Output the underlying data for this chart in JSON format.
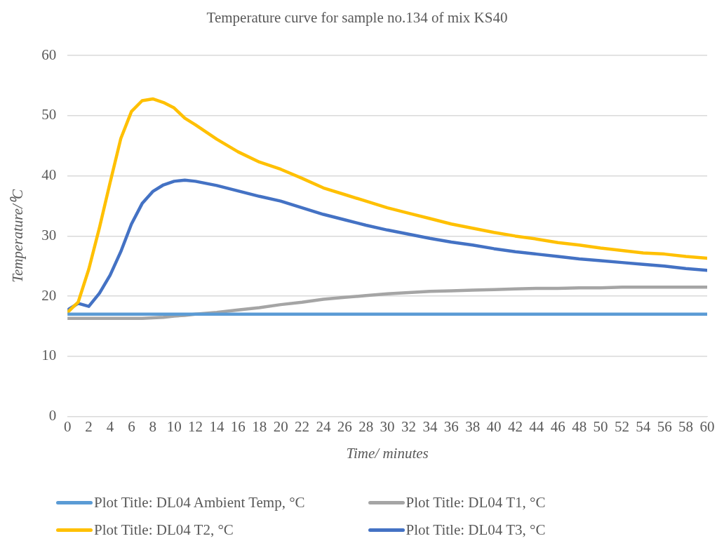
{
  "chart_data": {
    "type": "line",
    "title": "Temperature curve for sample no.134 of mix KS40",
    "xlabel": "Time/ minutes",
    "ylabel": "Temperature/⁰C",
    "x": [
      0,
      1,
      2,
      3,
      4,
      5,
      6,
      7,
      8,
      9,
      10,
      11,
      12,
      14,
      16,
      18,
      20,
      22,
      24,
      26,
      28,
      30,
      32,
      34,
      36,
      38,
      40,
      42,
      44,
      46,
      48,
      50,
      52,
      54,
      56,
      58,
      60
    ],
    "series": [
      {
        "name": "Plot Title: DL04 Ambient Temp, °C",
        "color": "#5b9bd5",
        "values": [
          17.0,
          17.0,
          17.0,
          17.0,
          17.0,
          17.0,
          17.0,
          17.0,
          17.0,
          17.0,
          17.0,
          17.0,
          17.0,
          17.0,
          17.0,
          17.0,
          17.0,
          17.0,
          17.0,
          17.0,
          17.0,
          17.0,
          17.0,
          17.0,
          17.0,
          17.0,
          17.0,
          17.0,
          17.0,
          17.0,
          17.0,
          17.0,
          17.0,
          17.0,
          17.0,
          17.0,
          17.0
        ]
      },
      {
        "name": "Plot Title: DL04 T1, °C",
        "color": "#a5a5a5",
        "values": [
          16.3,
          16.3,
          16.3,
          16.3,
          16.3,
          16.3,
          16.3,
          16.3,
          16.4,
          16.5,
          16.7,
          16.8,
          17.0,
          17.3,
          17.7,
          18.1,
          18.6,
          19.0,
          19.5,
          19.8,
          20.1,
          20.4,
          20.6,
          20.8,
          20.9,
          21.0,
          21.1,
          21.2,
          21.3,
          21.3,
          21.4,
          21.4,
          21.5,
          21.5,
          21.5,
          21.5,
          21.5
        ]
      },
      {
        "name": "Plot Title: DL04 T2, °C",
        "color": "#ffc000",
        "values": [
          17.3,
          19.0,
          24.5,
          31.4,
          38.9,
          46.2,
          50.7,
          52.5,
          52.8,
          52.2,
          51.3,
          49.6,
          48.5,
          46.1,
          44.0,
          42.3,
          41.1,
          39.6,
          38.0,
          36.9,
          35.8,
          34.7,
          33.8,
          32.9,
          32.0,
          31.3,
          30.6,
          30.0,
          29.5,
          28.9,
          28.5,
          28.0,
          27.6,
          27.2,
          27.0,
          26.6,
          26.3
        ]
      },
      {
        "name": "Plot Title: DL04 T3, °C",
        "color": "#4472c4",
        "values": [
          17.7,
          18.8,
          18.3,
          20.5,
          23.5,
          27.4,
          32.0,
          35.4,
          37.4,
          38.5,
          39.1,
          39.3,
          39.1,
          38.4,
          37.5,
          36.6,
          35.8,
          34.7,
          33.6,
          32.7,
          31.8,
          31.0,
          30.3,
          29.6,
          29.0,
          28.5,
          27.9,
          27.4,
          27.0,
          26.6,
          26.2,
          25.9,
          25.6,
          25.3,
          25.0,
          24.6,
          24.3
        ]
      }
    ],
    "xlim": [
      0,
      60
    ],
    "xticks": [
      0,
      2,
      4,
      6,
      8,
      10,
      12,
      14,
      16,
      18,
      20,
      22,
      24,
      26,
      28,
      30,
      32,
      34,
      36,
      38,
      40,
      42,
      44,
      46,
      48,
      50,
      52,
      54,
      56,
      58,
      60
    ],
    "ylim": [
      0,
      60
    ],
    "yticks": [
      0,
      10,
      20,
      30,
      40,
      50,
      60
    ],
    "grid": "y",
    "legend": "bottom",
    "marker": "none",
    "line_style": "solid"
  }
}
